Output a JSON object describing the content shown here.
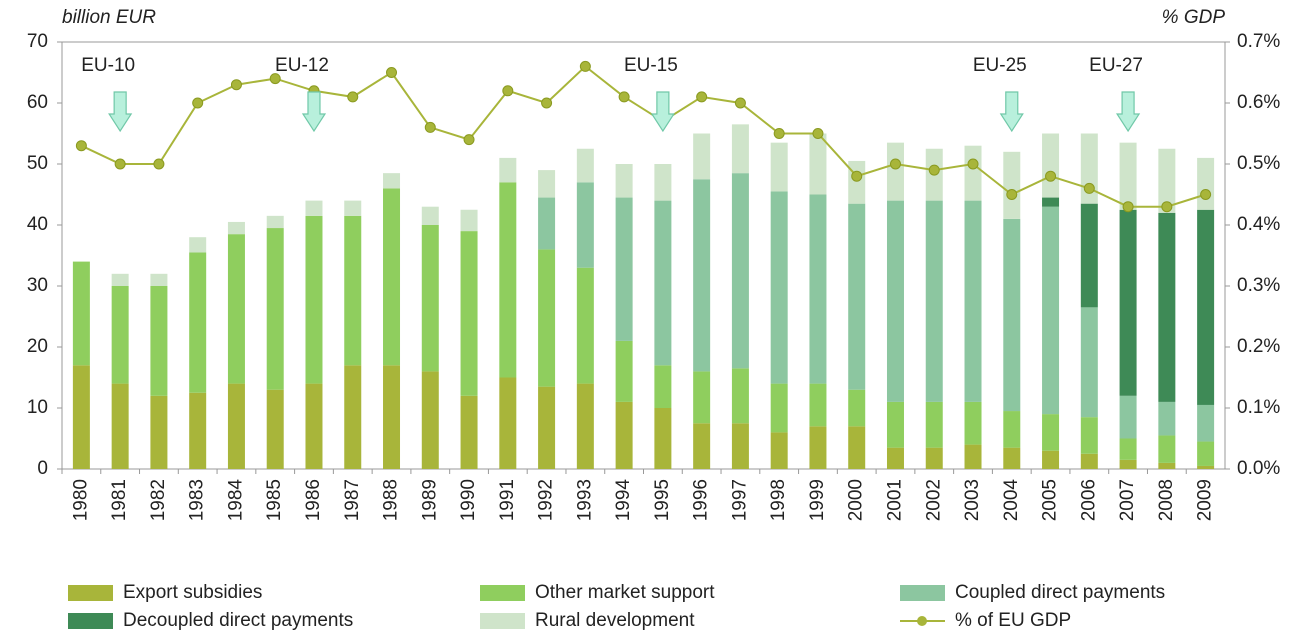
{
  "chart_data": {
    "type": "bar",
    "stacked": true,
    "y_label": "billion EUR",
    "y2_label": "% GDP",
    "categories": [
      "1980",
      "1981",
      "1982",
      "1983",
      "1984",
      "1985",
      "1986",
      "1987",
      "1988",
      "1989",
      "1990",
      "1991",
      "1992",
      "1993",
      "1994",
      "1995",
      "1996",
      "1997",
      "1998",
      "1999",
      "2000",
      "2001",
      "2002",
      "2003",
      "2004",
      "2005",
      "2006",
      "2007",
      "2008",
      "2009"
    ],
    "series": [
      {
        "name": "Export subsidies",
        "color": "#a8b53a",
        "values": [
          17,
          14,
          12,
          12.5,
          14,
          13,
          14,
          17,
          17,
          16,
          12,
          15,
          13.5,
          14,
          11,
          10,
          7.5,
          7.5,
          6,
          7,
          7,
          3.5,
          3.5,
          4,
          3.5,
          3,
          2.5,
          1.5,
          1,
          0.5
        ]
      },
      {
        "name": "Other market support",
        "color": "#8fce5e",
        "values": [
          17,
          16,
          18,
          23,
          24.5,
          26.5,
          27.5,
          24.5,
          29,
          24,
          27,
          32,
          22.5,
          19,
          10,
          7,
          8.5,
          9,
          8,
          7,
          6,
          7.5,
          7.5,
          7,
          6,
          6,
          6,
          3.5,
          4.5,
          4
        ]
      },
      {
        "name": "Coupled direct payments",
        "color": "#8cc6a0",
        "values": [
          0,
          0,
          0,
          0,
          0,
          0,
          0,
          0,
          0,
          0,
          0,
          0,
          8.5,
          14,
          23.5,
          27,
          31.5,
          32,
          31.5,
          31,
          30.5,
          33,
          33,
          33,
          31.5,
          34,
          18,
          7,
          5.5,
          6
        ]
      },
      {
        "name": "Decoupled direct payments",
        "color": "#3e8a56",
        "values": [
          0,
          0,
          0,
          0,
          0,
          0,
          0,
          0,
          0,
          0,
          0,
          0,
          0,
          0,
          0,
          0,
          0,
          0,
          0,
          0,
          0,
          0,
          0,
          0,
          0,
          1.5,
          17,
          30.5,
          31,
          32
        ]
      },
      {
        "name": "Rural development",
        "color": "#cfe4ca",
        "values": [
          0,
          2,
          2,
          2.5,
          2,
          2,
          2.5,
          2.5,
          2.5,
          3,
          3.5,
          4,
          4.5,
          5.5,
          5.5,
          6,
          7.5,
          8,
          8,
          10,
          7,
          9.5,
          8.5,
          9,
          11,
          10.5,
          11.5,
          11,
          10.5,
          8.5
        ]
      },
      {
        "name": "% of EU GDP",
        "color": "#a8b53a",
        "type": "line",
        "axis": "y2",
        "values": [
          0.53,
          0.5,
          0.5,
          0.6,
          0.63,
          0.64,
          0.62,
          0.61,
          0.65,
          0.56,
          0.54,
          0.62,
          0.6,
          0.66,
          0.61,
          0.57,
          0.61,
          0.6,
          0.55,
          0.55,
          0.48,
          0.5,
          0.49,
          0.5,
          0.45,
          0.48,
          0.46,
          0.43,
          0.43,
          0.45
        ]
      }
    ],
    "annotations": [
      {
        "text": "EU-10",
        "category": "1981"
      },
      {
        "text": "EU-12",
        "category": "1986"
      },
      {
        "text": "EU-15",
        "category": "1995"
      },
      {
        "text": "EU-25",
        "category": "2004"
      },
      {
        "text": "EU-27",
        "category": "2007"
      }
    ],
    "ylim": [
      0,
      70
    ],
    "yticks": [
      0,
      10,
      20,
      30,
      40,
      50,
      60,
      70
    ],
    "y2lim": [
      0,
      0.7
    ],
    "y2ticks": [
      {
        "value": 0,
        "label": "0.0%"
      },
      {
        "value": 0.1,
        "label": "0.1%"
      },
      {
        "value": 0.2,
        "label": "0.2%"
      },
      {
        "value": 0.3,
        "label": "0.3%"
      },
      {
        "value": 0.4,
        "label": "0.4%"
      },
      {
        "value": 0.5,
        "label": "0.5%"
      },
      {
        "value": 0.6,
        "label": "0.6%"
      },
      {
        "value": 0.7,
        "label": "0.7%"
      }
    ],
    "grid": false,
    "legend": "bottom"
  }
}
